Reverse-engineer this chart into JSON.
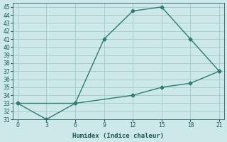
{
  "x_high": [
    0,
    6,
    9,
    12,
    15,
    18,
    21
  ],
  "y_high": [
    33,
    33,
    41,
    44.5,
    45,
    41,
    37
  ],
  "x_low": [
    0,
    3,
    6,
    12,
    15,
    18,
    21
  ],
  "y_low": [
    33,
    31,
    33,
    34,
    35,
    35.5,
    37
  ],
  "line_color": "#2e7d6e",
  "bg_color": "#cce8e8",
  "grid_color": "#aacccc",
  "xlabel": "Humidex (Indice chaleur)",
  "xlim": [
    -0.5,
    21.5
  ],
  "ylim": [
    31,
    45.5
  ],
  "xticks": [
    0,
    3,
    6,
    9,
    12,
    15,
    18,
    21
  ],
  "yticks": [
    31,
    32,
    33,
    34,
    35,
    36,
    37,
    38,
    39,
    40,
    41,
    42,
    43,
    44,
    45
  ],
  "marker": "D",
  "marker_size": 2.5,
  "linewidth": 1.0
}
